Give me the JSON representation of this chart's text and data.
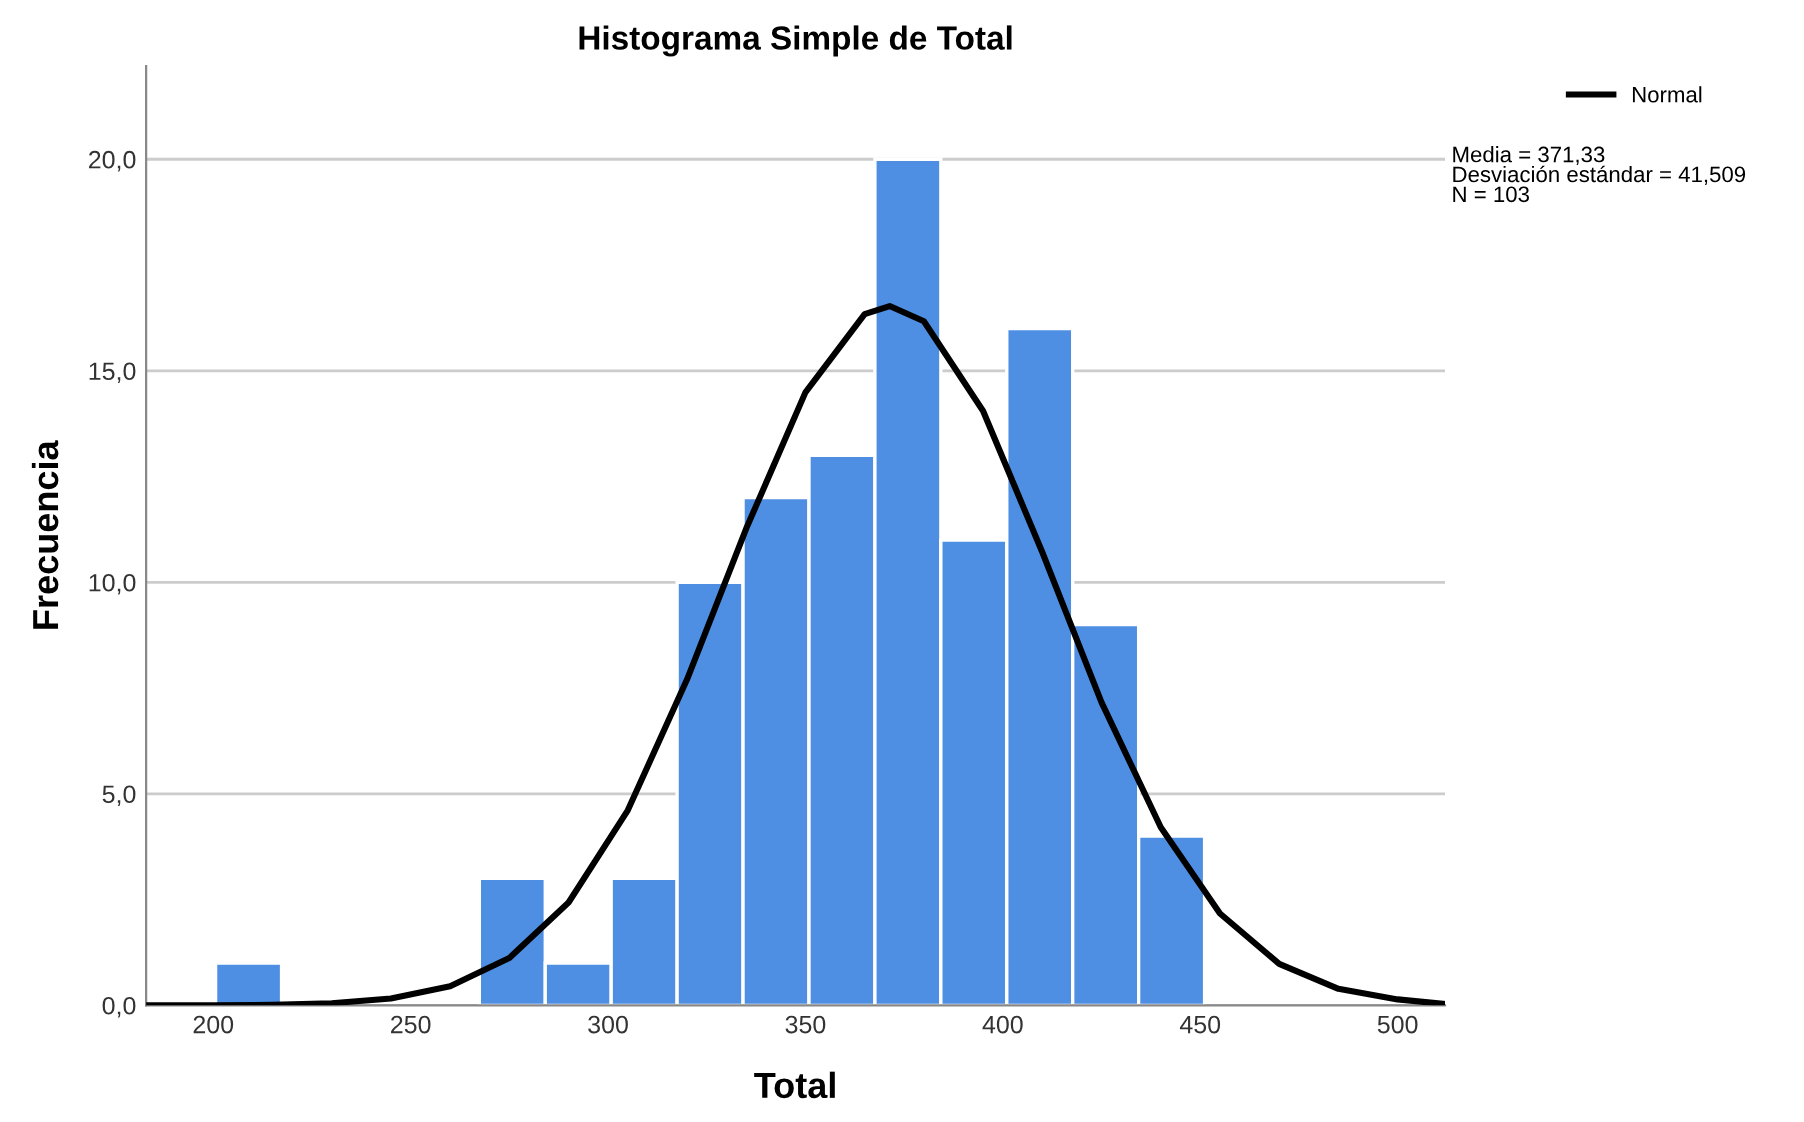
{
  "chart_data": {
    "type": "histogram",
    "title": "Histograma Simple de Total",
    "xlabel": "Total",
    "ylabel": "Frecuencia",
    "bins": [
      200.6,
      217.3,
      234,
      250.7,
      267.4,
      284.1,
      300.8,
      317.5,
      334.2,
      350.9,
      367.6,
      384.3,
      401,
      417.7,
      434.4,
      451.1
    ],
    "values": [
      1,
      0,
      0,
      0,
      3,
      1,
      3,
      10,
      12,
      13,
      20,
      11,
      16,
      9,
      4
    ],
    "color": "#4f8fe3",
    "series": [
      {
        "name": "Normal",
        "type": "line",
        "color": "#000000",
        "x": [
          183,
          200,
          215,
          230,
          245,
          260,
          275,
          290,
          305,
          320,
          335,
          350,
          365,
          371.33,
          380,
          395,
          410,
          425,
          440,
          455,
          470,
          485,
          500,
          512
        ],
        "values": [
          0.0,
          0.0,
          0.01,
          0.05,
          0.16,
          0.45,
          1.12,
          2.43,
          4.61,
          7.7,
          11.27,
          14.49,
          16.34,
          16.53,
          16.17,
          14.05,
          10.71,
          7.16,
          4.21,
          2.17,
          0.98,
          0.39,
          0.14,
          0.03
        ]
      }
    ],
    "xlim": [
      183,
      512
    ],
    "xticks": [
      200,
      250,
      300,
      350,
      400,
      450,
      500
    ],
    "ylim": [
      0,
      22.2
    ],
    "yticks": [
      {
        "value": 0,
        "label": "0,0"
      },
      {
        "value": 5,
        "label": "5,0"
      },
      {
        "value": 10,
        "label": "10,0"
      },
      {
        "value": 15,
        "label": "15,0"
      },
      {
        "value": 20,
        "label": "20,0"
      }
    ],
    "grid": "y",
    "legend": "top right",
    "annotations": [
      "Media = 371,33\nDesviación estándar = 41,509\nN = 103"
    ]
  }
}
